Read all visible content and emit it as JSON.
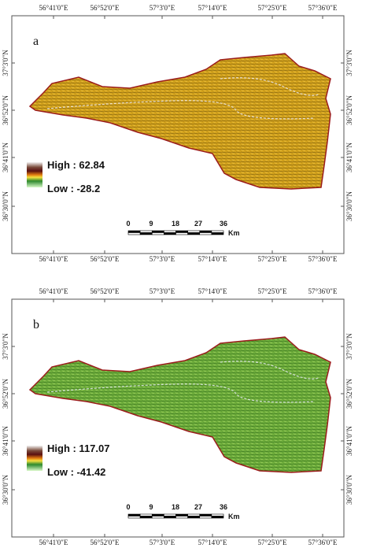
{
  "panels": [
    {
      "label": "a",
      "legend": {
        "high": "High : 62.84",
        "low": "Low : -28.2"
      }
    },
    {
      "label": "b",
      "legend": {
        "high": "High : 117.07",
        "low": "Low : -41.42"
      }
    }
  ],
  "longitude_labels": [
    "56°41'0\"E",
    "56°52'0\"E",
    "57°3'0\"E",
    "57°14'0\"E",
    "57°25'0\"E",
    "57°36'0\"E"
  ],
  "latitude_labels": [
    "37°3'0\"N",
    "36°52'0\"N",
    "36°41'0\"N",
    "36°30'0\"N"
  ],
  "scale_bar": {
    "ticks": [
      "0",
      "9",
      "18",
      "27",
      "36"
    ],
    "unit": "Km"
  }
}
